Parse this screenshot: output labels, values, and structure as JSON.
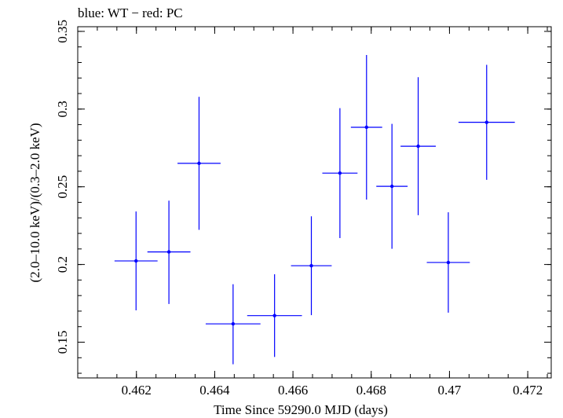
{
  "chart_data": {
    "type": "scatter",
    "title": "blue: WT − red: PC",
    "xlabel": "Time Since 59290.0 MJD (days)",
    "ylabel": "(2.0–10.0 keV)/(0.3–2.0 keV)",
    "xlim": [
      0.4605,
      0.4726
    ],
    "ylim": [
      0.127,
      0.353
    ],
    "x_major_ticks": [
      0.462,
      0.464,
      0.466,
      0.468,
      0.47,
      0.472
    ],
    "x_tick_labels": [
      "0.462",
      "0.464",
      "0.466",
      "0.468",
      "0.47",
      "0.472"
    ],
    "x_minor_step": 0.0005,
    "y_major_ticks": [
      0.15,
      0.2,
      0.25,
      0.3,
      0.35
    ],
    "y_tick_labels": [
      "0.15",
      "0.2",
      "0.25",
      "0.3",
      "0.35"
    ],
    "y_minor_step": 0.01,
    "grid": false,
    "series": [
      {
        "name": "WT",
        "color": "#0000ff",
        "points": [
          {
            "x": 0.46199,
            "xerr": 0.00055,
            "y": 0.2023,
            "yerr_low": 0.0318,
            "yerr_high": 0.0318
          },
          {
            "x": 0.46283,
            "xerr": 0.00055,
            "y": 0.2081,
            "yerr_low": 0.0335,
            "yerr_high": 0.033
          },
          {
            "x": 0.4636,
            "xerr": 0.00055,
            "y": 0.2651,
            "yerr_low": 0.0428,
            "yerr_high": 0.0428
          },
          {
            "x": 0.46447,
            "xerr": 0.0007,
            "y": 0.1618,
            "yerr_low": 0.026,
            "yerr_high": 0.0255
          },
          {
            "x": 0.46553,
            "xerr": 0.0007,
            "y": 0.1671,
            "yerr_low": 0.0266,
            "yerr_high": 0.0266
          },
          {
            "x": 0.46647,
            "xerr": 0.00052,
            "y": 0.1992,
            "yerr_low": 0.0318,
            "yerr_high": 0.0318
          },
          {
            "x": 0.4672,
            "xerr": 0.00045,
            "y": 0.2588,
            "yerr_low": 0.0418,
            "yerr_high": 0.0418
          },
          {
            "x": 0.46788,
            "xerr": 0.0004,
            "y": 0.2883,
            "yerr_low": 0.0465,
            "yerr_high": 0.0465
          },
          {
            "x": 0.46853,
            "xerr": 0.0004,
            "y": 0.2503,
            "yerr_low": 0.0402,
            "yerr_high": 0.0402
          },
          {
            "x": 0.4692,
            "xerr": 0.00045,
            "y": 0.2761,
            "yerr_low": 0.0444,
            "yerr_high": 0.0444
          },
          {
            "x": 0.46997,
            "xerr": 0.00055,
            "y": 0.2013,
            "yerr_low": 0.0323,
            "yerr_high": 0.0323
          },
          {
            "x": 0.47095,
            "xerr": 0.00072,
            "y": 0.2915,
            "yerr_low": 0.037,
            "yerr_high": 0.037
          }
        ]
      }
    ]
  }
}
